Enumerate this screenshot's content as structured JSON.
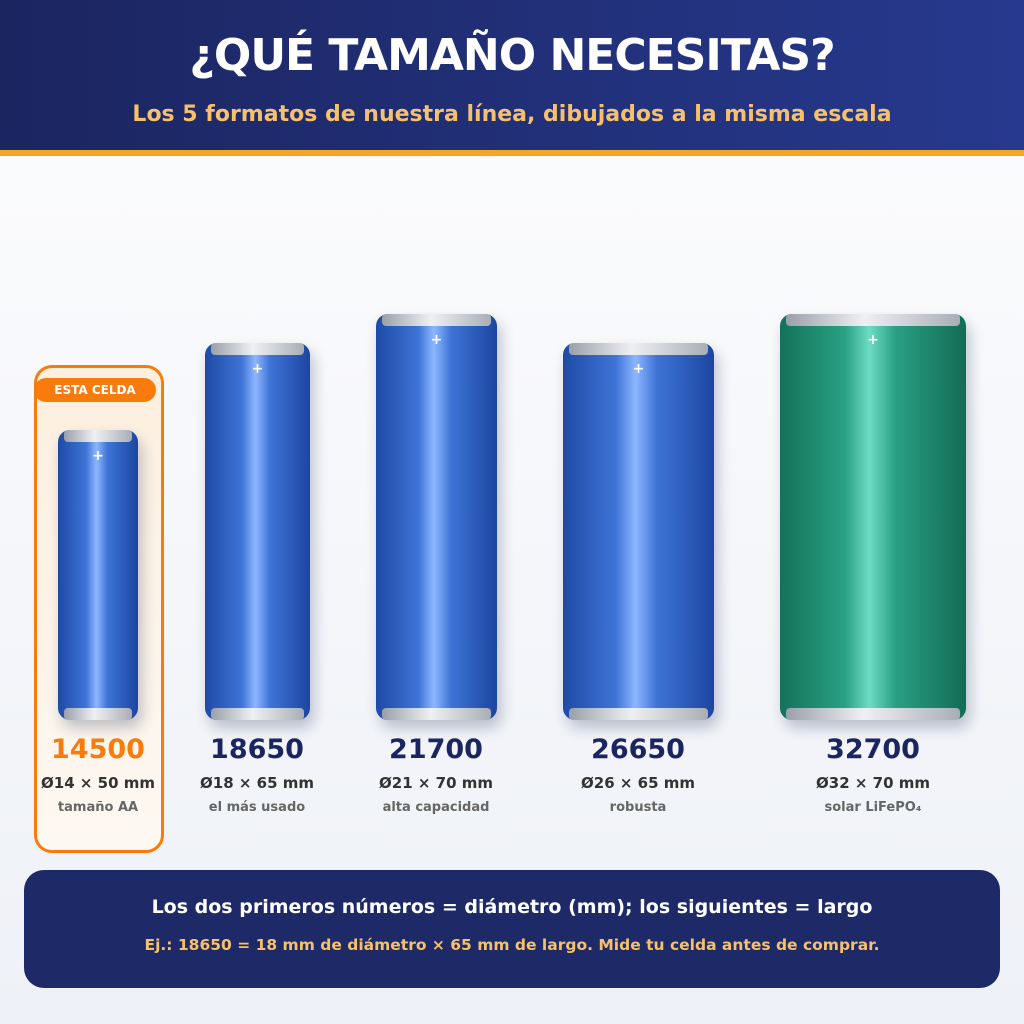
{
  "header": {
    "title": "¿QUÉ TAMAÑO NECESITAS?",
    "subtitle": "Los 5 formatos de nuestra línea, dibujados a la misma escala"
  },
  "badge": "ESTA CELDA",
  "cells": [
    {
      "name": "14500",
      "dims": "Ø14 × 50 mm",
      "note": "tamaño AA"
    },
    {
      "name": "18650",
      "dims": "Ø18 × 65 mm",
      "note": "el más usado"
    },
    {
      "name": "21700",
      "dims": "Ø21 × 70 mm",
      "note": "alta capacidad"
    },
    {
      "name": "26650",
      "dims": "Ø26 × 65 mm",
      "note": "robusta"
    },
    {
      "name": "32700",
      "dims": "Ø32 × 70 mm",
      "note": "solar LiFePO₄"
    }
  ],
  "footer": {
    "line1": "Los dos primeros números = diámetro (mm); los siguientes = largo",
    "line2": "Ej.: 18650 = 18 mm de diámetro × 65 mm de largo. Mide tu celda antes de comprar."
  }
}
